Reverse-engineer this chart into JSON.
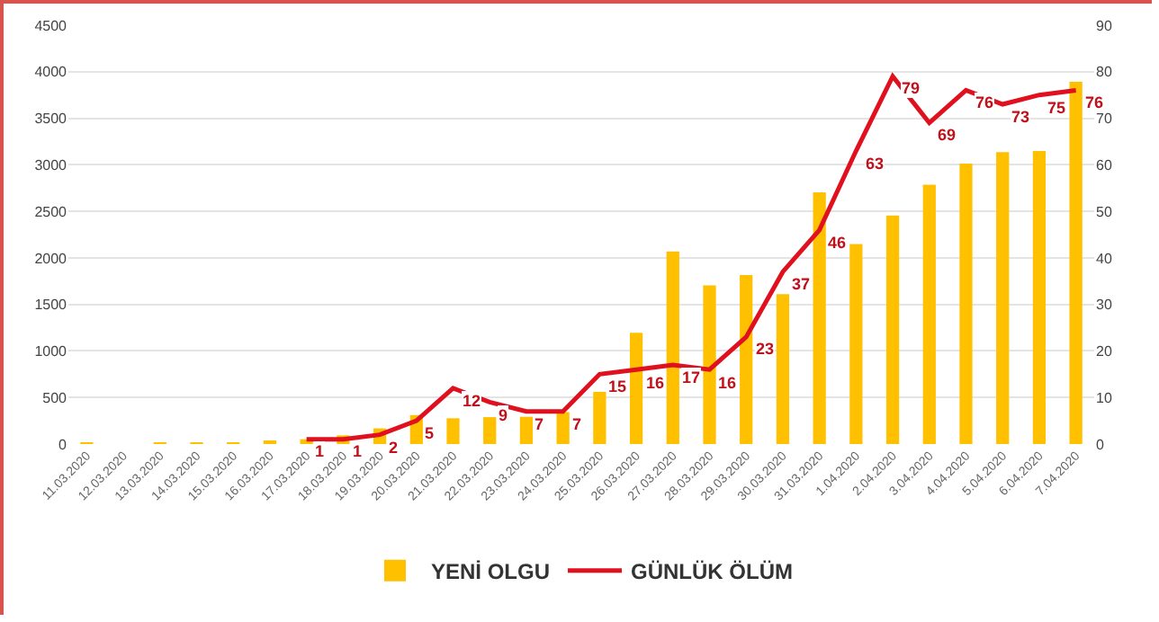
{
  "chart_data": {
    "type": "bar",
    "categories": [
      "11.03.2020",
      "12.03.2020",
      "13.03.2020",
      "14.03.2020",
      "15.03.2020",
      "16.03.2020",
      "17.03.2020",
      "18.03.2020",
      "19.03.2020",
      "20.03.2020",
      "21.03.2020",
      "22.03.2020",
      "23.03.2020",
      "24.03.2020",
      "25.03.2020",
      "26.03.2020",
      "27.03.2020",
      "28.03.2020",
      "29.03.2020",
      "30.03.2020",
      "31.03.2020",
      "1.04.2020",
      "2.04.2020",
      "3.04.2020",
      "4.04.2020",
      "5.04.2020",
      "6.04.2020",
      "7.04.2020"
    ],
    "series": [
      {
        "name": "YENİ OLGU",
        "color": "#ffc000",
        "values": [
          1,
          0,
          4,
          1,
          12,
          29,
          51,
          93,
          168,
          311,
          277,
          289,
          293,
          343,
          561,
          1196,
          2069,
          1704,
          1815,
          1610,
          2704,
          2148,
          2456,
          2786,
          3013,
          3135,
          3148,
          3892
        ]
      },
      {
        "name": "GÜNLÜK ÖLÜM",
        "type": "line",
        "axis": "y2",
        "color": "#e0101e",
        "values": [
          null,
          null,
          null,
          null,
          null,
          null,
          1,
          1,
          2,
          5,
          12,
          9,
          7,
          7,
          15,
          16,
          17,
          16,
          23,
          37,
          46,
          63,
          79,
          69,
          76,
          73,
          75,
          76
        ],
        "value_labels": [
          null,
          null,
          null,
          null,
          null,
          null,
          "1",
          "1",
          "2",
          "5",
          "12",
          "9",
          "7",
          "7",
          "15",
          "16",
          "17",
          "16",
          "23",
          "37",
          "46",
          "63",
          "79",
          "69",
          "76",
          "73",
          "75",
          "76"
        ]
      }
    ],
    "ylim": [
      0,
      4500
    ],
    "yticks": [
      0,
      500,
      1000,
      1500,
      2000,
      2500,
      3000,
      3500,
      4000,
      4500
    ],
    "y2lim": [
      0,
      90
    ],
    "y2ticks": [
      0,
      10,
      20,
      30,
      40,
      50,
      60,
      70,
      80,
      90
    ],
    "grid": "y",
    "legend": "bottom",
    "marker": "none",
    "line_style": "solid"
  }
}
